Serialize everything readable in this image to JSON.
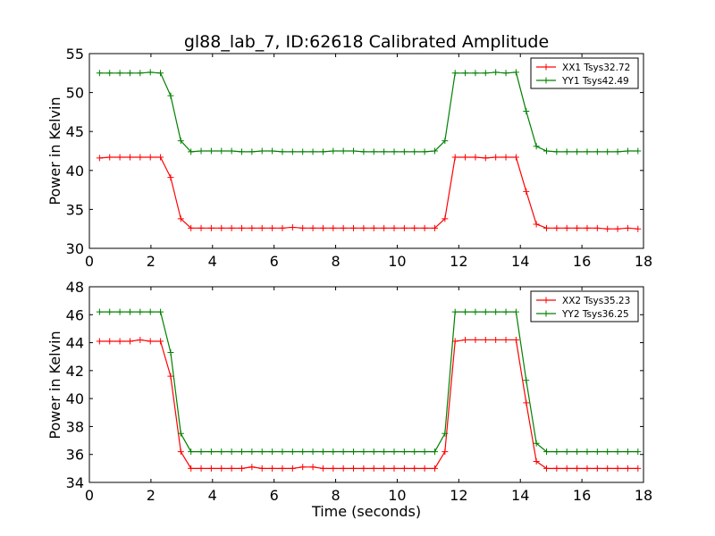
{
  "chart_data": [
    {
      "type": "line",
      "title": "gl88_lab_7, ID:62618 Calibrated Amplitude",
      "xlabel": "",
      "ylabel": "Power in Kelvin",
      "xlim": [
        0,
        18
      ],
      "ylim": [
        30,
        55
      ],
      "xticks": [
        "0",
        "2",
        "4",
        "6",
        "8",
        "10",
        "12",
        "14",
        "16",
        "18"
      ],
      "yticks": [
        "30",
        "35",
        "40",
        "45",
        "50",
        "55"
      ],
      "grid": false,
      "legend_position": "top-right",
      "x": [
        0.33,
        0.66,
        0.99,
        1.32,
        1.65,
        1.98,
        2.31,
        2.64,
        2.97,
        3.3,
        3.63,
        3.96,
        4.29,
        4.62,
        4.95,
        5.28,
        5.61,
        5.94,
        6.27,
        6.6,
        6.93,
        7.26,
        7.59,
        7.92,
        8.25,
        8.58,
        8.91,
        9.24,
        9.57,
        9.9,
        10.23,
        10.56,
        10.89,
        11.22,
        11.55,
        11.88,
        12.21,
        12.54,
        12.87,
        13.2,
        13.53,
        13.86,
        14.19,
        14.52,
        14.85,
        15.18,
        15.51,
        15.84,
        16.17,
        16.5,
        16.83,
        17.16,
        17.49,
        17.82
      ],
      "series": [
        {
          "name": "XX1 Tsys32.72",
          "color": "#ff0000",
          "values": [
            41.6,
            41.7,
            41.7,
            41.7,
            41.7,
            41.7,
            41.7,
            39.1,
            33.8,
            32.6,
            32.6,
            32.6,
            32.6,
            32.6,
            32.6,
            32.6,
            32.6,
            32.6,
            32.6,
            32.7,
            32.6,
            32.6,
            32.6,
            32.6,
            32.6,
            32.6,
            32.6,
            32.6,
            32.6,
            32.6,
            32.6,
            32.6,
            32.6,
            32.6,
            33.8,
            41.7,
            41.7,
            41.7,
            41.6,
            41.7,
            41.7,
            41.7,
            37.3,
            33.1,
            32.6,
            32.6,
            32.6,
            32.6,
            32.6,
            32.6,
            32.5,
            32.5,
            32.6,
            32.5
          ]
        },
        {
          "name": "YY1 Tsys42.49",
          "color": "#008000",
          "values": [
            52.5,
            52.5,
            52.5,
            52.5,
            52.5,
            52.6,
            52.5,
            49.6,
            43.8,
            42.4,
            42.5,
            42.5,
            42.5,
            42.5,
            42.4,
            42.4,
            42.5,
            42.5,
            42.4,
            42.4,
            42.4,
            42.4,
            42.4,
            42.5,
            42.5,
            42.5,
            42.4,
            42.4,
            42.4,
            42.4,
            42.4,
            42.4,
            42.4,
            42.5,
            43.8,
            52.5,
            52.5,
            52.5,
            52.5,
            52.6,
            52.5,
            52.6,
            47.6,
            43.1,
            42.5,
            42.4,
            42.4,
            42.4,
            42.4,
            42.4,
            42.4,
            42.4,
            42.5,
            42.5
          ]
        }
      ]
    },
    {
      "type": "line",
      "title": "",
      "xlabel": "Time (seconds)",
      "ylabel": "Power in Kelvin",
      "xlim": [
        0,
        18
      ],
      "ylim": [
        34,
        48
      ],
      "xticks": [
        "0",
        "2",
        "4",
        "6",
        "8",
        "10",
        "12",
        "14",
        "16",
        "18"
      ],
      "yticks": [
        "34",
        "36",
        "38",
        "40",
        "42",
        "44",
        "46",
        "48"
      ],
      "grid": false,
      "legend_position": "top-right",
      "x": [
        0.33,
        0.66,
        0.99,
        1.32,
        1.65,
        1.98,
        2.31,
        2.64,
        2.97,
        3.3,
        3.63,
        3.96,
        4.29,
        4.62,
        4.95,
        5.28,
        5.61,
        5.94,
        6.27,
        6.6,
        6.93,
        7.26,
        7.59,
        7.92,
        8.25,
        8.58,
        8.91,
        9.24,
        9.57,
        9.9,
        10.23,
        10.56,
        10.89,
        11.22,
        11.55,
        11.88,
        12.21,
        12.54,
        12.87,
        13.2,
        13.53,
        13.86,
        14.19,
        14.52,
        14.85,
        15.18,
        15.51,
        15.84,
        16.17,
        16.5,
        16.83,
        17.16,
        17.49,
        17.82
      ],
      "series": [
        {
          "name": "XX2 Tsys35.23",
          "color": "#ff0000",
          "values": [
            44.1,
            44.1,
            44.1,
            44.1,
            44.2,
            44.1,
            44.1,
            41.6,
            36.2,
            35.0,
            35.0,
            35.0,
            35.0,
            35.0,
            35.0,
            35.1,
            35.0,
            35.0,
            35.0,
            35.0,
            35.1,
            35.1,
            35.0,
            35.0,
            35.0,
            35.0,
            35.0,
            35.0,
            35.0,
            35.0,
            35.0,
            35.0,
            35.0,
            35.0,
            36.2,
            44.1,
            44.2,
            44.2,
            44.2,
            44.2,
            44.2,
            44.2,
            39.7,
            35.5,
            35.0,
            35.0,
            35.0,
            35.0,
            35.0,
            35.0,
            35.0,
            35.0,
            35.0,
            35.0
          ]
        },
        {
          "name": "YY2 Tsys36.25",
          "color": "#008000",
          "values": [
            46.2,
            46.2,
            46.2,
            46.2,
            46.2,
            46.2,
            46.2,
            43.3,
            37.5,
            36.2,
            36.2,
            36.2,
            36.2,
            36.2,
            36.2,
            36.2,
            36.2,
            36.2,
            36.2,
            36.2,
            36.2,
            36.2,
            36.2,
            36.2,
            36.2,
            36.2,
            36.2,
            36.2,
            36.2,
            36.2,
            36.2,
            36.2,
            36.2,
            36.2,
            37.5,
            46.2,
            46.2,
            46.2,
            46.2,
            46.2,
            46.2,
            46.2,
            41.3,
            36.8,
            36.2,
            36.2,
            36.2,
            36.2,
            36.2,
            36.2,
            36.2,
            36.2,
            36.2,
            36.2
          ]
        }
      ]
    }
  ]
}
